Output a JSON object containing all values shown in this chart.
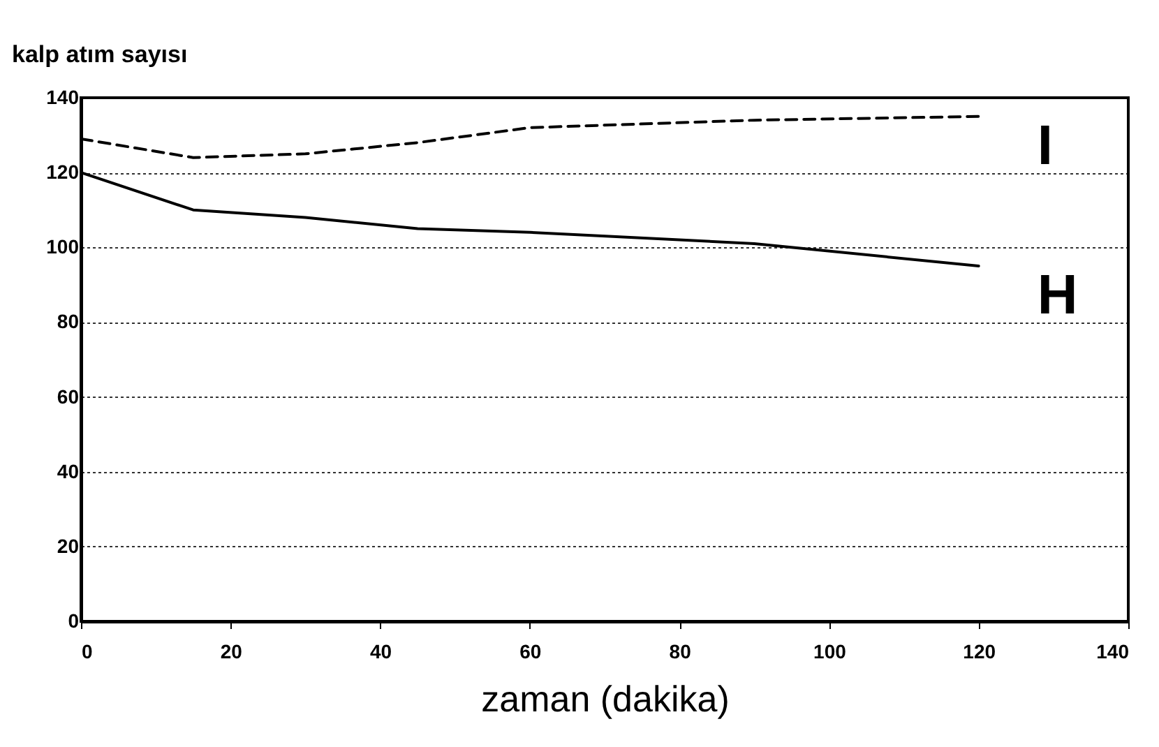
{
  "chart_data": {
    "type": "line",
    "ylabel": "kalp atım sayısı",
    "xlabel": "zaman (dakika)",
    "x": [
      0,
      15,
      30,
      45,
      60,
      90,
      120
    ],
    "series": [
      {
        "name": "I",
        "color": "#000000",
        "line_style": "dashed",
        "values": [
          129,
          124,
          125,
          128,
          132,
          134,
          135
        ]
      },
      {
        "name": "H",
        "color": "#000000",
        "line_style": "solid",
        "values": [
          120,
          110,
          108,
          105,
          104,
          101,
          95
        ]
      }
    ],
    "xlim": [
      0,
      140
    ],
    "xticks": [
      0,
      20,
      40,
      60,
      80,
      100,
      120,
      140
    ],
    "ylim": [
      0,
      140
    ],
    "yticks": [
      0,
      20,
      40,
      60,
      80,
      100,
      120,
      140
    ],
    "grid": "y",
    "marker": "none"
  }
}
